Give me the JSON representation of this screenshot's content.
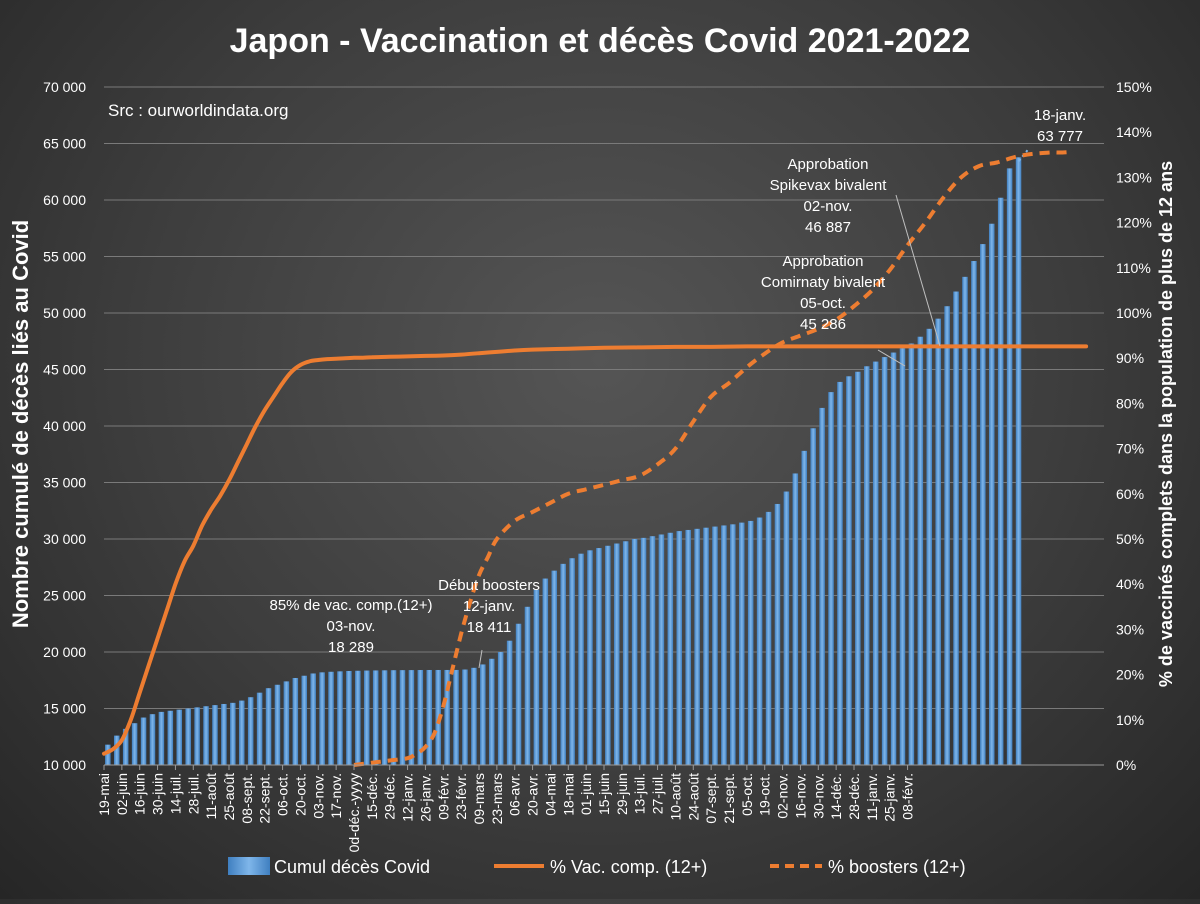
{
  "chart_data": {
    "type": "bar",
    "title": "Japon - Vaccination et décès Covid 2021-2022",
    "source": "Src : ourworldindata.org",
    "ylabel": "Nombre cumulé de décès liés au Covid",
    "y2label": "% de vaccinés complets dans  la population de plus de 12 ans",
    "ylim": [
      10000,
      70000
    ],
    "y2lim": [
      0,
      150
    ],
    "yticks": [
      "10 000",
      "15 000",
      "20 000",
      "25 000",
      "30 000",
      "35 000",
      "40 000",
      "45 000",
      "50 000",
      "55 000",
      "60 000",
      "65 000",
      "70 000"
    ],
    "y2ticks": [
      "0%",
      "10%",
      "20%",
      "30%",
      "40%",
      "50%",
      "60%",
      "70%",
      "80%",
      "90%",
      "100%",
      "110%",
      "120%",
      "130%",
      "140%",
      "150%"
    ],
    "xticks": [
      "19-mai",
      "02-juin",
      "16-juin",
      "30-juin",
      "14-juil.",
      "28-juil.",
      "11-août",
      "25-août",
      "08-sept.",
      "22-sept.",
      "06-oct.",
      "20-oct.",
      "03-nov.",
      "17-nov.",
      "0d-déc.-yyyy",
      "15-déc.",
      "29-déc.",
      "12-janv.",
      "26-janv.",
      "09-févr.",
      "23-févr.",
      "09-mars",
      "23-mars",
      "06-avr.",
      "20-avr.",
      "04-mai",
      "18-mai",
      "01-juin",
      "15-juin",
      "29-juin",
      "13-juil.",
      "27-juil.",
      "10-août",
      "24-août",
      "07-sept.",
      "21-sept.",
      "05-oct.",
      "19-oct.",
      "02-nov.",
      "16-nov.",
      "30-nov.",
      "14-déc.",
      "28-déc.",
      "11-janv.",
      "25-janv.",
      "08-févr."
    ],
    "series": [
      {
        "name": "Cumul décès Covid",
        "type": "bar",
        "color": "#5b9bd5",
        "values": [
          11800,
          12600,
          13200,
          13700,
          14200,
          14500,
          14700,
          14800,
          14900,
          15000,
          15100,
          15200,
          15300,
          15400,
          15500,
          15700,
          16000,
          16400,
          16800,
          17100,
          17400,
          17700,
          17900,
          18100,
          18200,
          18250,
          18289,
          18320,
          18340,
          18360,
          18370,
          18380,
          18390,
          18395,
          18400,
          18405,
          18408,
          18409,
          18410,
          18411,
          18450,
          18600,
          18900,
          19400,
          20000,
          21000,
          22500,
          24000,
          25500,
          26500,
          27200,
          27800,
          28300,
          28700,
          29000,
          29200,
          29400,
          29600,
          29800,
          30000,
          30100,
          30250,
          30400,
          30550,
          30700,
          30800,
          30900,
          31000,
          31100,
          31200,
          31300,
          31450,
          31600,
          31900,
          32400,
          33100,
          34200,
          35800,
          37800,
          39800,
          41600,
          43000,
          43900,
          44400,
          44800,
          45286,
          45700,
          46100,
          46500,
          46887,
          47300,
          47900,
          48600,
          49500,
          50600,
          51900,
          53200,
          54600,
          56100,
          57900,
          60200,
          62800,
          63777
        ]
      },
      {
        "name": "% Vac. comp. (12+)",
        "type": "line",
        "color": "#ed7d31",
        "x_days": [
          0,
          7,
          14,
          21,
          28,
          35,
          42,
          49,
          56,
          63,
          70,
          77,
          84,
          91,
          98,
          105,
          112,
          119,
          126,
          133,
          140,
          147,
          154,
          161,
          168,
          175,
          182,
          189,
          196,
          203,
          210,
          224,
          238,
          252,
          266,
          280,
          294,
          308,
          322,
          336,
          364,
          392,
          420,
          448,
          476,
          504,
          532,
          560,
          588,
          616,
          644,
          672,
          700,
          728,
          756,
          770
        ],
        "values": [
          2.5,
          3.5,
          5.5,
          10,
          16,
          22,
          28,
          34,
          40,
          45,
          48.5,
          53,
          56.5,
          59.5,
          63,
          67,
          71,
          75,
          78.5,
          81.5,
          84.5,
          87,
          88.5,
          89.3,
          89.6,
          89.8,
          89.9,
          90,
          90.1,
          90.1,
          90.2,
          90.3,
          90.4,
          90.5,
          90.6,
          90.8,
          91.1,
          91.4,
          91.7,
          91.9,
          92.1,
          92.3,
          92.4,
          92.5,
          92.5,
          92.6,
          92.6,
          92.6,
          92.6,
          92.6,
          92.6,
          92.6,
          92.6,
          92.6,
          92.6,
          92.6
        ]
      },
      {
        "name": "% boosters (12+)",
        "type": "line",
        "dashed": true,
        "color": "#ed7d31",
        "x_days": [
          196,
          210,
          224,
          238,
          245,
          252,
          259,
          266,
          273,
          280,
          287,
          294,
          301,
          308,
          322,
          336,
          350,
          364,
          378,
          392,
          406,
          420,
          434,
          448,
          462,
          476,
          490,
          504,
          518,
          532,
          546,
          560,
          574,
          588,
          602,
          616,
          630,
          644,
          658,
          672,
          686,
          700,
          714,
          728,
          742,
          749,
          756
        ],
        "values": [
          0,
          0.5,
          1,
          1.5,
          2.5,
          4,
          7,
          13,
          21,
          29,
          36,
          42,
          46,
          50,
          54,
          56,
          58,
          60,
          61,
          62,
          63,
          64,
          66.5,
          70,
          76,
          81.5,
          84.5,
          88,
          91,
          93.5,
          95,
          96.5,
          98.5,
          101.5,
          105,
          109.5,
          115,
          120,
          125.5,
          130,
          132.5,
          133.3,
          134.5,
          135.2,
          135.5,
          135.5,
          135.6
        ]
      }
    ],
    "annotations": [
      {
        "lines": [
          "85% de vac. comp.(12+)",
          "03-nov.",
          "18 289"
        ]
      },
      {
        "lines": [
          "Début boosters",
          "12-janv.",
          "18 411"
        ]
      },
      {
        "lines": [
          "Approbation",
          "Spikevax bivalent",
          "02-nov.",
          "46 887"
        ]
      },
      {
        "lines": [
          "Approbation",
          "Comirnaty bivalent",
          "05-oct.",
          "45 286"
        ]
      },
      {
        "lines": [
          "18-janv.",
          "63 777"
        ]
      }
    ],
    "legend": "bottom",
    "grid": true
  }
}
